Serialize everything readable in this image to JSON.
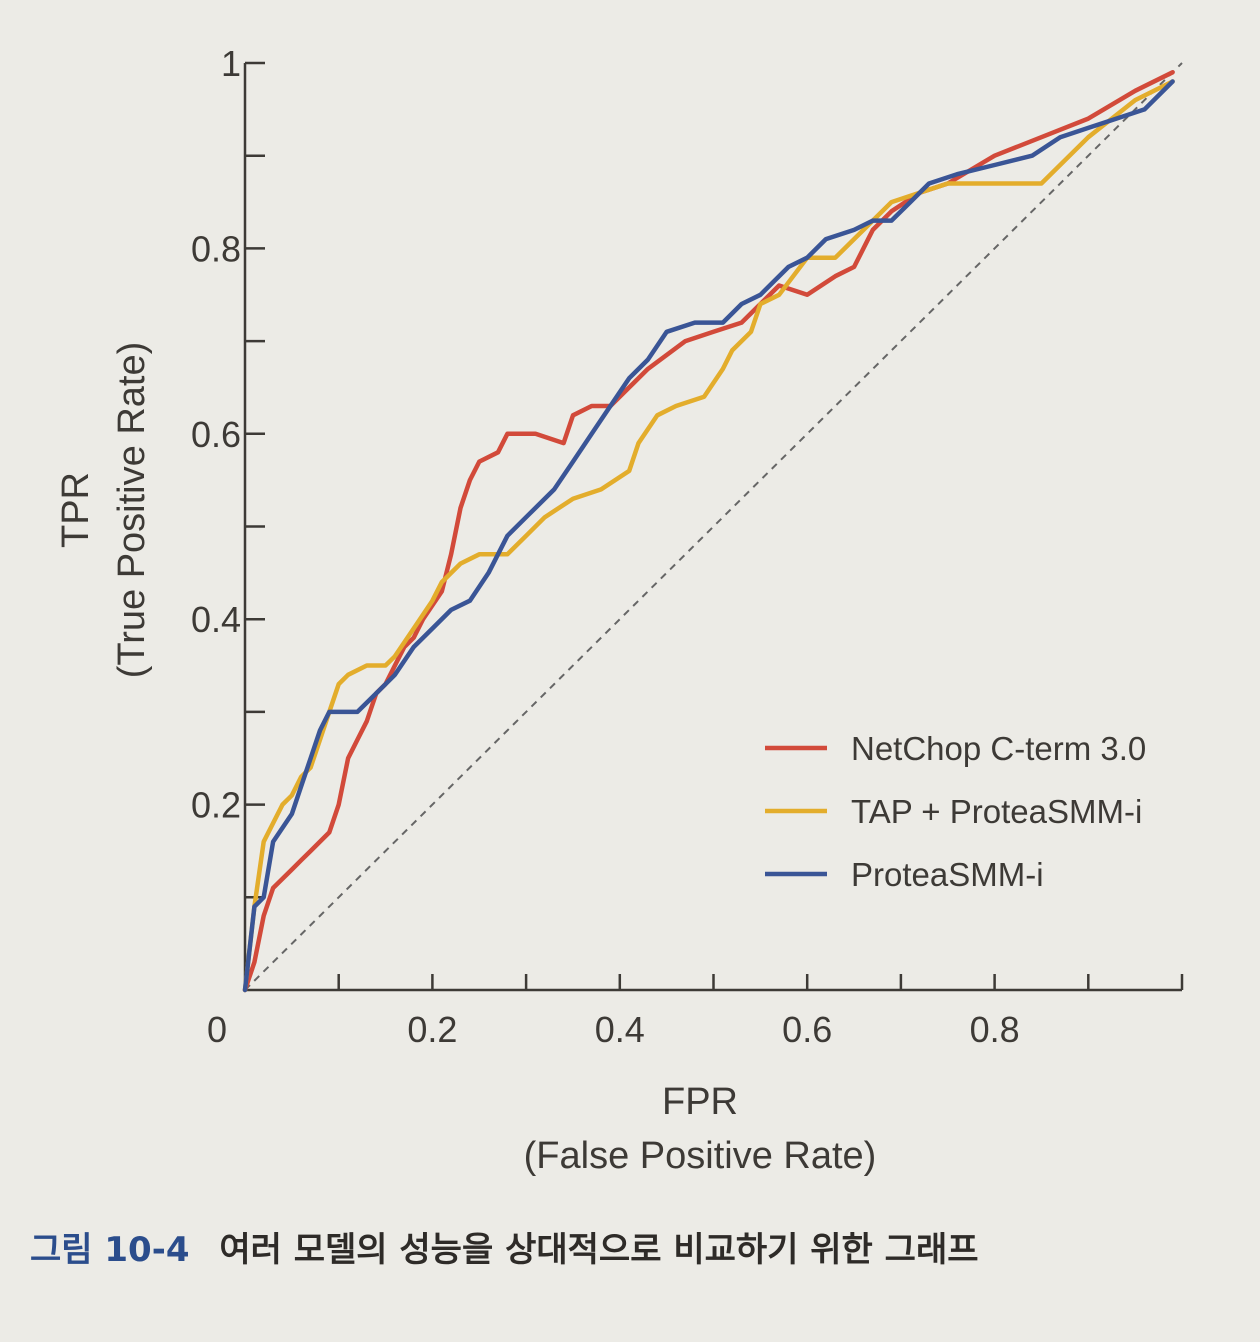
{
  "caption": {
    "label": "그림 10-4",
    "text": "여러 모델의 성능을 상대적으로 비교하기 위한 그래프"
  },
  "chart_data": {
    "type": "line",
    "title": "",
    "xlabel": "FPR",
    "xlabel_sub": "(False Positive Rate)",
    "ylabel": "TPR",
    "ylabel_sub": "(True Positive Rate)",
    "xlim": [
      0,
      1
    ],
    "ylim": [
      0,
      1
    ],
    "x_tick_labels": [
      "0",
      "0.2",
      "0.4",
      "0.6",
      "0.8"
    ],
    "x_ticks": [
      0.1,
      0.2,
      0.3,
      0.4,
      0.5,
      0.6,
      0.7,
      0.8,
      0.9,
      1.0
    ],
    "x_labeled_ticks": [
      0.2,
      0.4,
      0.6,
      0.8
    ],
    "y_tick_labels": [
      "0.2",
      "0.4",
      "0.6",
      "0.8",
      "1"
    ],
    "y_ticks": [
      0.1,
      0.2,
      0.3,
      0.4,
      0.5,
      0.6,
      0.7,
      0.8,
      0.9,
      1.0
    ],
    "y_labeled_ticks": [
      0.2,
      0.4,
      0.6,
      0.8,
      1.0
    ],
    "legend_position": "lower-right",
    "grid": false,
    "diagonal_reference": {
      "from": [
        0,
        0
      ],
      "to": [
        1,
        1
      ],
      "color": "#666666",
      "style": "dashed"
    },
    "series": [
      {
        "name": "NetChop C-term 3.0",
        "color": "#d24a3a",
        "points": [
          [
            0,
            0
          ],
          [
            0.01,
            0.03
          ],
          [
            0.02,
            0.08
          ],
          [
            0.03,
            0.11
          ],
          [
            0.05,
            0.13
          ],
          [
            0.06,
            0.14
          ],
          [
            0.07,
            0.15
          ],
          [
            0.09,
            0.17
          ],
          [
            0.1,
            0.2
          ],
          [
            0.11,
            0.25
          ],
          [
            0.12,
            0.27
          ],
          [
            0.13,
            0.29
          ],
          [
            0.14,
            0.32
          ],
          [
            0.15,
            0.33
          ],
          [
            0.16,
            0.35
          ],
          [
            0.17,
            0.37
          ],
          [
            0.18,
            0.38
          ],
          [
            0.19,
            0.4
          ],
          [
            0.21,
            0.43
          ],
          [
            0.22,
            0.47
          ],
          [
            0.23,
            0.52
          ],
          [
            0.24,
            0.55
          ],
          [
            0.25,
            0.57
          ],
          [
            0.27,
            0.58
          ],
          [
            0.28,
            0.6
          ],
          [
            0.31,
            0.6
          ],
          [
            0.34,
            0.59
          ],
          [
            0.35,
            0.62
          ],
          [
            0.37,
            0.63
          ],
          [
            0.39,
            0.63
          ],
          [
            0.41,
            0.65
          ],
          [
            0.43,
            0.67
          ],
          [
            0.47,
            0.7
          ],
          [
            0.5,
            0.71
          ],
          [
            0.53,
            0.72
          ],
          [
            0.55,
            0.74
          ],
          [
            0.57,
            0.76
          ],
          [
            0.6,
            0.75
          ],
          [
            0.63,
            0.77
          ],
          [
            0.65,
            0.78
          ],
          [
            0.67,
            0.82
          ],
          [
            0.69,
            0.84
          ],
          [
            0.72,
            0.86
          ],
          [
            0.75,
            0.87
          ],
          [
            0.8,
            0.9
          ],
          [
            0.85,
            0.92
          ],
          [
            0.9,
            0.94
          ],
          [
            0.95,
            0.97
          ],
          [
            0.99,
            0.99
          ]
        ]
      },
      {
        "name": "TAP + ProteaSMM-i",
        "color": "#e3ad2c",
        "points": [
          [
            0,
            0
          ],
          [
            0.01,
            0.09
          ],
          [
            0.02,
            0.16
          ],
          [
            0.03,
            0.18
          ],
          [
            0.04,
            0.2
          ],
          [
            0.05,
            0.21
          ],
          [
            0.06,
            0.23
          ],
          [
            0.07,
            0.24
          ],
          [
            0.08,
            0.27
          ],
          [
            0.09,
            0.3
          ],
          [
            0.1,
            0.33
          ],
          [
            0.11,
            0.34
          ],
          [
            0.13,
            0.35
          ],
          [
            0.15,
            0.35
          ],
          [
            0.16,
            0.36
          ],
          [
            0.18,
            0.39
          ],
          [
            0.2,
            0.42
          ],
          [
            0.21,
            0.44
          ],
          [
            0.23,
            0.46
          ],
          [
            0.25,
            0.47
          ],
          [
            0.28,
            0.47
          ],
          [
            0.3,
            0.49
          ],
          [
            0.32,
            0.51
          ],
          [
            0.35,
            0.53
          ],
          [
            0.38,
            0.54
          ],
          [
            0.41,
            0.56
          ],
          [
            0.42,
            0.59
          ],
          [
            0.44,
            0.62
          ],
          [
            0.46,
            0.63
          ],
          [
            0.49,
            0.64
          ],
          [
            0.51,
            0.67
          ],
          [
            0.52,
            0.69
          ],
          [
            0.54,
            0.71
          ],
          [
            0.55,
            0.74
          ],
          [
            0.57,
            0.75
          ],
          [
            0.6,
            0.79
          ],
          [
            0.63,
            0.79
          ],
          [
            0.65,
            0.81
          ],
          [
            0.67,
            0.83
          ],
          [
            0.69,
            0.85
          ],
          [
            0.72,
            0.86
          ],
          [
            0.75,
            0.87
          ],
          [
            0.8,
            0.87
          ],
          [
            0.85,
            0.87
          ],
          [
            0.9,
            0.92
          ],
          [
            0.95,
            0.96
          ],
          [
            0.99,
            0.98
          ]
        ]
      },
      {
        "name": "ProteaSMM-i",
        "color": "#3a5596",
        "points": [
          [
            0,
            0
          ],
          [
            0.01,
            0.09
          ],
          [
            0.02,
            0.1
          ],
          [
            0.03,
            0.16
          ],
          [
            0.05,
            0.19
          ],
          [
            0.06,
            0.22
          ],
          [
            0.07,
            0.25
          ],
          [
            0.08,
            0.28
          ],
          [
            0.09,
            0.3
          ],
          [
            0.1,
            0.3
          ],
          [
            0.12,
            0.3
          ],
          [
            0.14,
            0.32
          ],
          [
            0.16,
            0.34
          ],
          [
            0.18,
            0.37
          ],
          [
            0.2,
            0.39
          ],
          [
            0.22,
            0.41
          ],
          [
            0.24,
            0.42
          ],
          [
            0.26,
            0.45
          ],
          [
            0.28,
            0.49
          ],
          [
            0.3,
            0.51
          ],
          [
            0.33,
            0.54
          ],
          [
            0.35,
            0.57
          ],
          [
            0.37,
            0.6
          ],
          [
            0.39,
            0.63
          ],
          [
            0.41,
            0.66
          ],
          [
            0.43,
            0.68
          ],
          [
            0.45,
            0.71
          ],
          [
            0.48,
            0.72
          ],
          [
            0.51,
            0.72
          ],
          [
            0.53,
            0.74
          ],
          [
            0.55,
            0.75
          ],
          [
            0.58,
            0.78
          ],
          [
            0.6,
            0.79
          ],
          [
            0.62,
            0.81
          ],
          [
            0.65,
            0.82
          ],
          [
            0.67,
            0.83
          ],
          [
            0.69,
            0.83
          ],
          [
            0.71,
            0.85
          ],
          [
            0.73,
            0.87
          ],
          [
            0.76,
            0.88
          ],
          [
            0.8,
            0.89
          ],
          [
            0.84,
            0.9
          ],
          [
            0.87,
            0.92
          ],
          [
            0.9,
            0.93
          ],
          [
            0.93,
            0.94
          ],
          [
            0.96,
            0.95
          ],
          [
            0.99,
            0.98
          ]
        ]
      }
    ]
  }
}
